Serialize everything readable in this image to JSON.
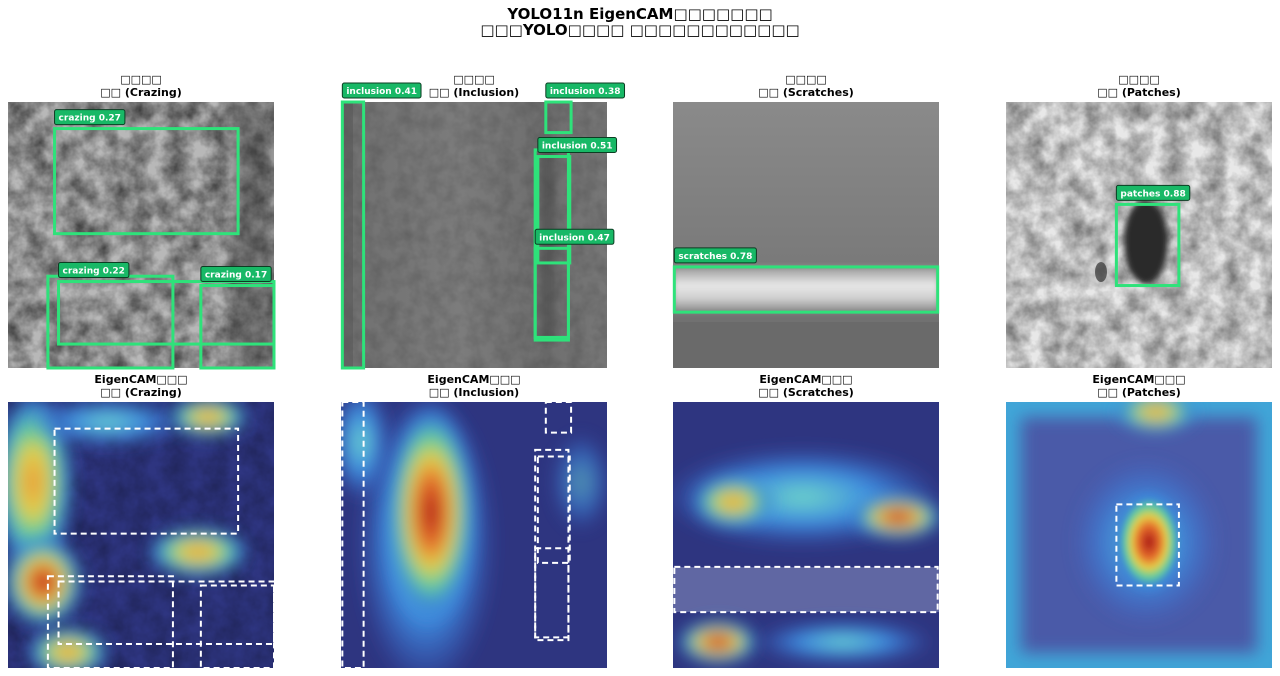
{
  "title": [
    "YOLO11n EigenCAM□□□□□□□",
    "□□□YOLO□□□□  □□□□□□□□□□□□"
  ],
  "panels": [
    {
      "image_title": [
        "□□□□",
        "□□ (Crazing)"
      ],
      "cam_title": [
        "EigenCAM□□□",
        "□□ (Crazing)"
      ],
      "detections": [
        {
          "label": "crazing 0.27",
          "box": [
            35,
            20,
            173,
            99
          ]
        },
        {
          "box": [
            30,
            131,
            124,
            200
          ]
        },
        {
          "label": "crazing 0.22",
          "box": [
            38,
            135,
            200,
            182
          ]
        },
        {
          "label": "crazing 0.17",
          "box": [
            145,
            138,
            200,
            200
          ]
        }
      ]
    },
    {
      "image_title": [
        "□□□□",
        "□□ (Inclusion)"
      ],
      "cam_title": [
        "EigenCAM□□□",
        "□□ (Inclusion)"
      ],
      "detections": [
        {
          "label": "inclusion 0.41",
          "box": [
            1,
            0,
            17,
            200
          ]
        },
        {
          "label": "inclusion 0.38",
          "box": [
            154,
            0,
            173,
            23
          ]
        },
        {
          "box": [
            146,
            36,
            171,
            177
          ]
        },
        {
          "label": "inclusion 0.51",
          "box": [
            148,
            41,
            172,
            121
          ]
        },
        {
          "label": "inclusion 0.47",
          "box": [
            146,
            110,
            171,
            179
          ]
        }
      ]
    },
    {
      "image_title": [
        "□□□□",
        "□□ (Scratches)"
      ],
      "cam_title": [
        "EigenCAM□□□",
        "□□ (Scratches)"
      ],
      "detections": [
        {
          "label": "scratches 0.78",
          "box": [
            1,
            124,
            199,
            158
          ]
        }
      ]
    },
    {
      "image_title": [
        "□□□□",
        "□□ (Patches)"
      ],
      "cam_title": [
        "EigenCAM□□□",
        "□□ (Patches)"
      ],
      "detections": [
        {
          "label": "patches 0.88",
          "box": [
            83,
            77,
            130,
            138
          ]
        }
      ]
    }
  ]
}
